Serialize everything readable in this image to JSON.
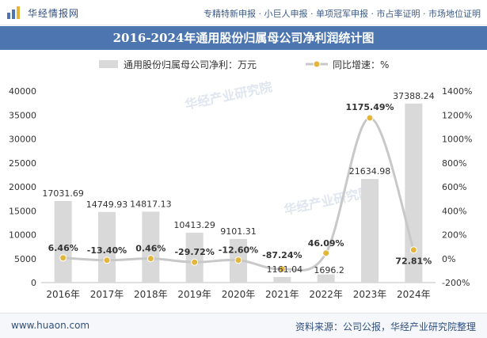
{
  "header": {
    "brand": "华经情报网",
    "services": "专精特新申报 · 小巨人申报 · 单项冠军申报 · 市占率证明 · 市场地位证明"
  },
  "title": "2016-2024年通用股份归属母公司净利润统计图",
  "legend": {
    "bar_label": "通用股份归属母公司净利：万元",
    "line_label": "同比增速：%"
  },
  "colors": {
    "bar": "#d9d9d9",
    "line": "#c8c8c8",
    "marker": "#e3b53a",
    "title_band": "#4d76b0"
  },
  "chart_data": {
    "type": "bar",
    "title": "2016-2024年通用股份归属母公司净利润统计图",
    "categories": [
      "2016年",
      "2017年",
      "2018年",
      "2019年",
      "2020年",
      "2021年",
      "2022年",
      "2023年",
      "2024年"
    ],
    "series": [
      {
        "name": "通用股份归属母公司净利：万元",
        "type": "bar",
        "axis": "left",
        "values": [
          17031.69,
          14749.93,
          14817.13,
          10413.29,
          9101.31,
          1161.04,
          1696.2,
          21634.98,
          37388.24
        ],
        "labels": [
          "17031.69",
          "14749.93",
          "14817.13",
          "10413.29",
          "9101.31",
          "1161.04",
          "1696.2",
          "21634.98",
          "37388.24"
        ]
      },
      {
        "name": "同比增速：%",
        "type": "line",
        "axis": "right",
        "values": [
          6.46,
          -13.4,
          0.46,
          -29.72,
          -12.6,
          -87.24,
          46.09,
          1175.49,
          72.81
        ],
        "labels": [
          "6.46%",
          "-13.40%",
          "0.46%",
          "-29.72%",
          "-12.60%",
          "-87.24%",
          "46.09%",
          "1175.49%",
          "72.81%"
        ]
      }
    ],
    "y_left": {
      "min": 0,
      "max": 40000,
      "ticks": [
        "0",
        "5000",
        "10000",
        "15000",
        "20000",
        "25000",
        "30000",
        "35000",
        "40000"
      ]
    },
    "y_right": {
      "min": -200,
      "max": 1400,
      "ticks": [
        "-200%",
        "0%",
        "200%",
        "400%",
        "600%",
        "800%",
        "1000%",
        "1200%",
        "1400%"
      ]
    },
    "watermark": "华经产业研究院"
  },
  "footer": {
    "url": "www.huaon.com",
    "source": "资料来源：公司公报，华经产业研究院整理"
  }
}
